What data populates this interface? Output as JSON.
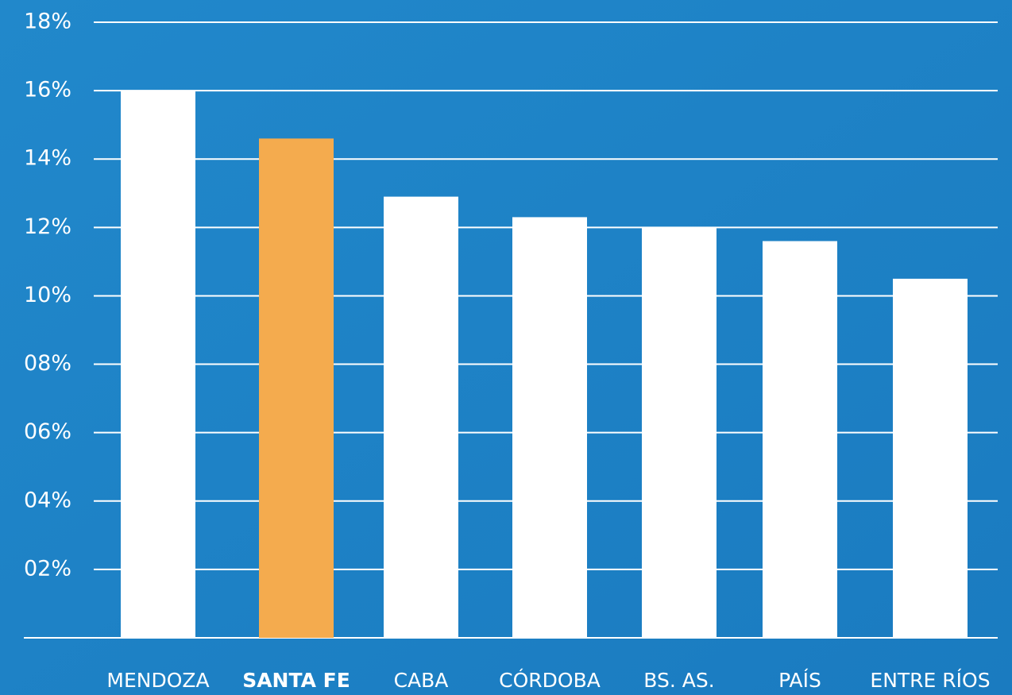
{
  "chart_data": {
    "type": "bar",
    "categories": [
      "MENDOZA",
      "SANTA FE",
      "CABA",
      "CÓRDOBA",
      "BS. AS.",
      "PAÍS",
      "ENTRE RÍOS"
    ],
    "values": [
      16.0,
      14.6,
      12.9,
      12.3,
      12.0,
      11.6,
      10.5
    ],
    "color": "#ffffff",
    "colors": [
      "#ffffff",
      "#f4ab4e",
      "#ffffff",
      "#ffffff",
      "#ffffff",
      "#ffffff",
      "#ffffff"
    ],
    "ylim": [
      0,
      18
    ],
    "yticks": [
      {
        "value": 2,
        "label": "02%"
      },
      {
        "value": 4,
        "label": "04%"
      },
      {
        "value": 6,
        "label": "06%"
      },
      {
        "value": 8,
        "label": "08%"
      },
      {
        "value": 10,
        "label": "10%"
      },
      {
        "value": 12,
        "label": "12%"
      },
      {
        "value": 14,
        "label": "14%"
      },
      {
        "value": 16,
        "label": "16%"
      },
      {
        "value": 18,
        "label": "18%"
      }
    ],
    "grid": true
  }
}
